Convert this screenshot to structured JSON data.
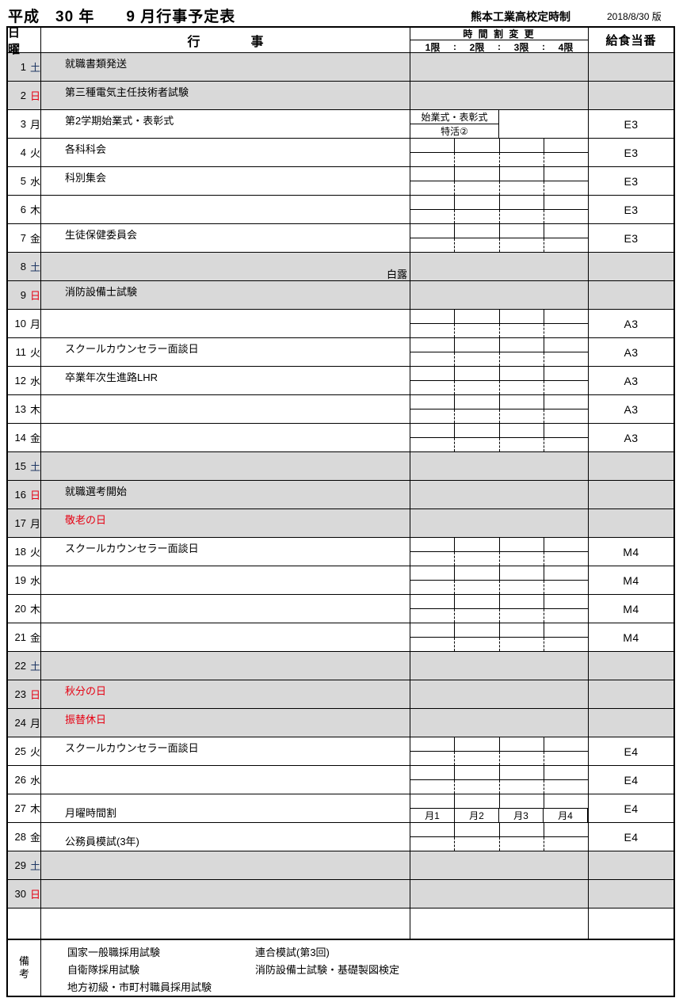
{
  "header": {
    "title": "平成　30 年　　9 月行事予定表",
    "school": "熊本工業高校定時制",
    "version": "2018/8/30 版"
  },
  "table_header": {
    "day_col": "日　曜",
    "events_col": "行　　　　事",
    "timetable_col": "時 間 割 変 更",
    "periods": [
      "1限",
      "2限",
      "3限",
      "4限"
    ],
    "period_separator": ":",
    "lunch_col": "給食当番"
  },
  "colors": {
    "weekend_bg": "#d9d9d9",
    "holiday_red": "#e60012",
    "saturday_navy": "#1f3864",
    "border": "#000000"
  },
  "rows": [
    {
      "date": "1",
      "dow": "土",
      "shaded": true,
      "event": "就職書類発送",
      "event_red": false,
      "event_pos": "top",
      "note": "",
      "grid": "none",
      "lunch": ""
    },
    {
      "date": "2",
      "dow": "日",
      "shaded": true,
      "event": "第三種電気主任技術者試験",
      "event_red": false,
      "event_pos": "top",
      "note": "",
      "grid": "none",
      "lunch": ""
    },
    {
      "date": "3",
      "dow": "月",
      "shaded": false,
      "event": "第2学期始業式・表彰式",
      "event_red": false,
      "event_pos": "top",
      "note": "",
      "grid": "open2",
      "grid_lines": [
        "始業式・表彰式",
        "特活②"
      ],
      "lunch": "E3"
    },
    {
      "date": "4",
      "dow": "火",
      "shaded": false,
      "event": "各科科会",
      "event_red": false,
      "event_pos": "top",
      "note": "",
      "grid": "std",
      "lunch": "E3"
    },
    {
      "date": "5",
      "dow": "水",
      "shaded": false,
      "event": "科別集会",
      "event_red": false,
      "event_pos": "top",
      "note": "",
      "grid": "std",
      "lunch": "E3"
    },
    {
      "date": "6",
      "dow": "木",
      "shaded": false,
      "event": "",
      "event_red": false,
      "event_pos": "top",
      "note": "",
      "grid": "std",
      "lunch": "E3"
    },
    {
      "date": "7",
      "dow": "金",
      "shaded": false,
      "event": "生徒保健委員会",
      "event_red": false,
      "event_pos": "top",
      "note": "",
      "grid": "std",
      "lunch": "E3"
    },
    {
      "date": "8",
      "dow": "土",
      "shaded": true,
      "event": "",
      "event_red": false,
      "event_pos": "top",
      "note": "白露",
      "grid": "none",
      "lunch": ""
    },
    {
      "date": "9",
      "dow": "日",
      "shaded": true,
      "event": "消防設備士試験",
      "event_red": false,
      "event_pos": "top",
      "note": "",
      "grid": "none",
      "lunch": ""
    },
    {
      "date": "10",
      "dow": "月",
      "shaded": false,
      "event": "",
      "event_red": false,
      "event_pos": "top",
      "note": "",
      "grid": "std",
      "lunch": "A3"
    },
    {
      "date": "11",
      "dow": "火",
      "shaded": false,
      "event": "スクールカウンセラー面談日",
      "event_red": false,
      "event_pos": "top",
      "note": "",
      "grid": "std",
      "lunch": "A3"
    },
    {
      "date": "12",
      "dow": "水",
      "shaded": false,
      "event": "卒業年次生進路LHR",
      "event_red": false,
      "event_pos": "top",
      "note": "",
      "grid": "std",
      "lunch": "A3"
    },
    {
      "date": "13",
      "dow": "木",
      "shaded": false,
      "event": "",
      "event_red": false,
      "event_pos": "top",
      "note": "",
      "grid": "std",
      "lunch": "A3"
    },
    {
      "date": "14",
      "dow": "金",
      "shaded": false,
      "event": "",
      "event_red": false,
      "event_pos": "top",
      "note": "",
      "grid": "std",
      "lunch": "A3"
    },
    {
      "date": "15",
      "dow": "土",
      "shaded": true,
      "event": "",
      "event_red": false,
      "event_pos": "top",
      "note": "",
      "grid": "none",
      "lunch": ""
    },
    {
      "date": "16",
      "dow": "日",
      "shaded": true,
      "event": "就職選考開始",
      "event_red": false,
      "event_pos": "top",
      "note": "",
      "grid": "none",
      "lunch": ""
    },
    {
      "date": "17",
      "dow": "月",
      "shaded": true,
      "event": "敬老の日",
      "event_red": true,
      "event_pos": "top",
      "note": "",
      "grid": "none",
      "lunch": ""
    },
    {
      "date": "18",
      "dow": "火",
      "shaded": false,
      "event": "スクールカウンセラー面談日",
      "event_red": false,
      "event_pos": "top",
      "note": "",
      "grid": "std",
      "lunch": "M4"
    },
    {
      "date": "19",
      "dow": "水",
      "shaded": false,
      "event": "",
      "event_red": false,
      "event_pos": "top",
      "note": "",
      "grid": "std",
      "lunch": "M4"
    },
    {
      "date": "20",
      "dow": "木",
      "shaded": false,
      "event": "",
      "event_red": false,
      "event_pos": "top",
      "note": "",
      "grid": "std",
      "lunch": "M4"
    },
    {
      "date": "21",
      "dow": "金",
      "shaded": false,
      "event": "",
      "event_red": false,
      "event_pos": "top",
      "note": "",
      "grid": "std",
      "lunch": "M4"
    },
    {
      "date": "22",
      "dow": "土",
      "shaded": true,
      "event": "",
      "event_red": false,
      "event_pos": "top",
      "note": "",
      "grid": "none",
      "lunch": ""
    },
    {
      "date": "23",
      "dow": "日",
      "shaded": true,
      "event": "秋分の日",
      "event_red": true,
      "event_pos": "top",
      "note": "",
      "grid": "none",
      "lunch": ""
    },
    {
      "date": "24",
      "dow": "月",
      "shaded": true,
      "event": "振替休日",
      "event_red": true,
      "event_pos": "top",
      "note": "",
      "grid": "none",
      "lunch": ""
    },
    {
      "date": "25",
      "dow": "火",
      "shaded": false,
      "event": "スクールカウンセラー面談日",
      "event_red": false,
      "event_pos": "top",
      "note": "",
      "grid": "std",
      "lunch": "E4"
    },
    {
      "date": "26",
      "dow": "水",
      "shaded": false,
      "event": "",
      "event_red": false,
      "event_pos": "top",
      "note": "",
      "grid": "std",
      "lunch": "E4"
    },
    {
      "date": "27",
      "dow": "木",
      "shaded": false,
      "event": "月曜時間割",
      "event_red": false,
      "event_pos": "bottom",
      "note": "",
      "grid": "labels",
      "grid_labels": [
        "月1",
        "月2",
        "月3",
        "月4"
      ],
      "lunch": "E4"
    },
    {
      "date": "28",
      "dow": "金",
      "shaded": false,
      "event": "公務員模試(3年)",
      "event_red": false,
      "event_pos": "bottom",
      "note": "",
      "grid": "std",
      "lunch": "E4"
    },
    {
      "date": "29",
      "dow": "土",
      "shaded": true,
      "event": "",
      "event_red": false,
      "event_pos": "top",
      "note": "",
      "grid": "none",
      "lunch": ""
    },
    {
      "date": "30",
      "dow": "日",
      "shaded": true,
      "event": "",
      "event_red": false,
      "event_pos": "top",
      "note": "",
      "grid": "none",
      "lunch": ""
    }
  ],
  "remarks": {
    "label_chars": [
      "備",
      "考"
    ],
    "col1": [
      "国家一般職採用試験",
      "自衛隊採用試験",
      "地方初級・市町村職員採用試験"
    ],
    "col2": [
      "連合模試(第3回)",
      "消防設備士試験・基礎製図検定"
    ]
  }
}
